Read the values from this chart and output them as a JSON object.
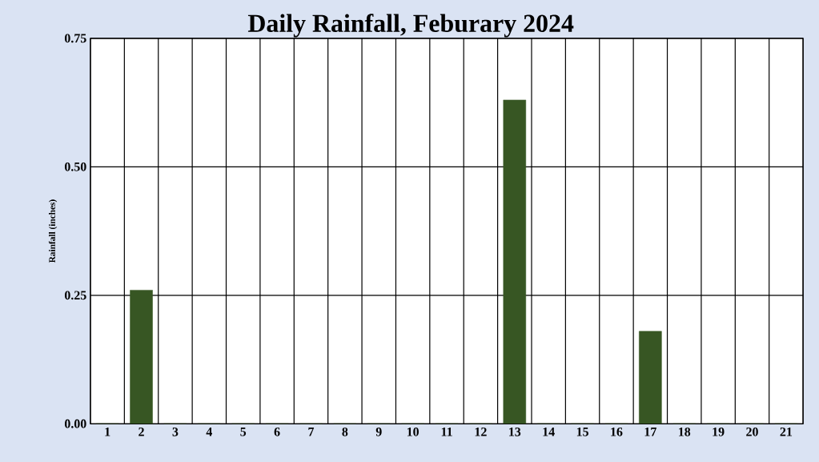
{
  "chart_data": {
    "type": "bar",
    "title": "Daily Rainfall, Feburary 2024",
    "ylabel": "Rainfall (inches)",
    "categories": [
      "1",
      "2",
      "3",
      "4",
      "5",
      "6",
      "7",
      "8",
      "9",
      "10",
      "11",
      "12",
      "13",
      "14",
      "15",
      "16",
      "17",
      "18",
      "19",
      "20",
      "21"
    ],
    "values": [
      0,
      0.26,
      0,
      0,
      0,
      0,
      0,
      0,
      0,
      0,
      0,
      0,
      0.63,
      0,
      0,
      0,
      0.18,
      0,
      0,
      0,
      0
    ],
    "color": "#375623",
    "ylim": [
      0,
      0.75
    ],
    "yticks": [
      {
        "value": 0,
        "label": "0.00"
      },
      {
        "value": 0.25,
        "label": "0.25"
      },
      {
        "value": 0.5,
        "label": "0.50"
      },
      {
        "value": 0.75,
        "label": "0.75"
      }
    ],
    "grid": true
  }
}
